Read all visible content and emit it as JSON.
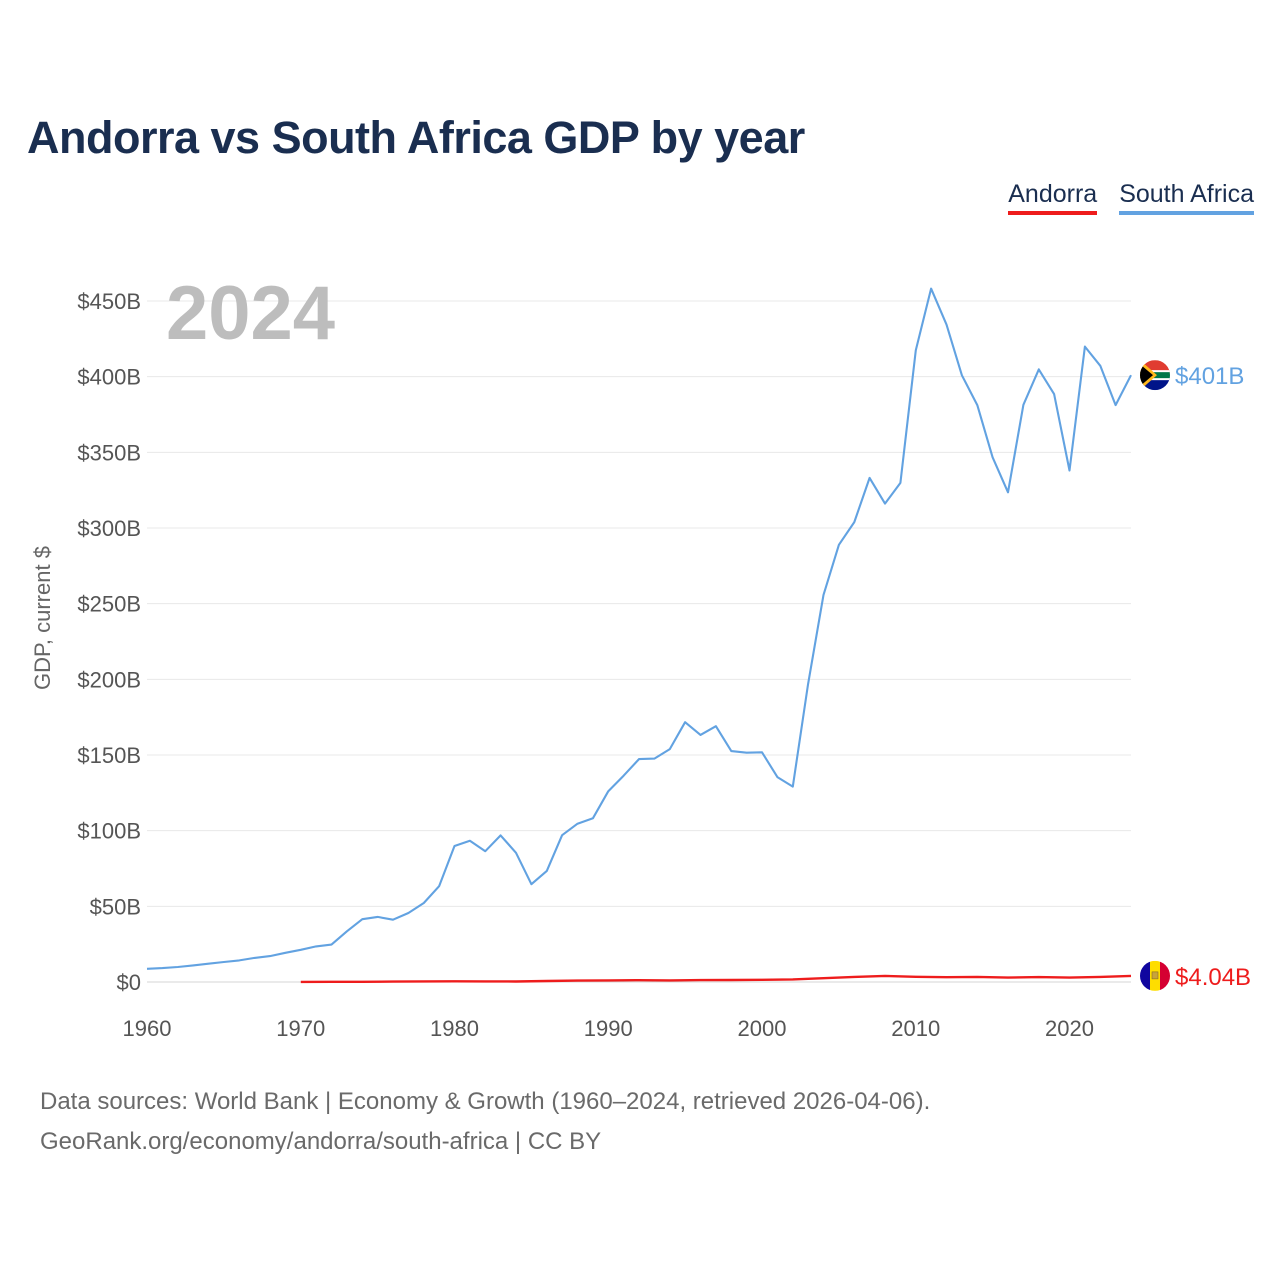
{
  "title": "Andorra vs South Africa GDP by year",
  "legend": {
    "andorra": "Andorra",
    "south_africa": "South Africa"
  },
  "colors": {
    "andorra": "#ee1c1c",
    "south_africa": "#62a2e1",
    "title": "#1a2e50"
  },
  "footer": {
    "line1": "Data sources: World Bank | Economy & Growth (1960–2024, retrieved 2026-04-06).",
    "line2": "GeoRank.org/economy/andorra/south-africa | CC BY"
  },
  "chart_data": {
    "type": "line",
    "title": "Andorra vs South Africa GDP by year",
    "year_label": "2024",
    "ylabel": "GDP, current $",
    "xlabel": "",
    "xlim": [
      1960,
      2024
    ],
    "ylim": [
      0,
      450
    ],
    "x_ticks": [
      1960,
      1970,
      1980,
      1990,
      2000,
      2010,
      2020
    ],
    "x_tick_labels": [
      "1960",
      "1970",
      "1980",
      "1990",
      "2000",
      "2010",
      "2020"
    ],
    "y_ticks": [
      0,
      50,
      100,
      150,
      200,
      250,
      300,
      350,
      400,
      450
    ],
    "y_tick_labels": [
      "$0",
      "$50B",
      "$100B",
      "$150B",
      "$200B",
      "$250B",
      "$300B",
      "$350B",
      "$400B",
      "$450B"
    ],
    "grid": true,
    "legend_position": "top-right",
    "units": "billion USD",
    "series": [
      {
        "name": "South Africa",
        "color": "#62a2e1",
        "end_label": "$401B",
        "x": [
          1960,
          1961,
          1962,
          1963,
          1964,
          1965,
          1966,
          1967,
          1968,
          1969,
          1970,
          1971,
          1972,
          1973,
          1974,
          1975,
          1976,
          1977,
          1978,
          1979,
          1980,
          1981,
          1982,
          1983,
          1984,
          1985,
          1986,
          1987,
          1988,
          1989,
          1990,
          1991,
          1992,
          1993,
          1994,
          1995,
          1996,
          1997,
          1998,
          1999,
          2000,
          2001,
          2002,
          2003,
          2004,
          2005,
          2006,
          2007,
          2008,
          2009,
          2010,
          2011,
          2012,
          2013,
          2014,
          2015,
          2016,
          2017,
          2018,
          2019,
          2020,
          2021,
          2022,
          2023,
          2024
        ],
        "values": [
          8.7,
          9.2,
          9.9,
          11,
          12.1,
          13.2,
          14.3,
          15.9,
          17.1,
          19.3,
          21.3,
          23.5,
          24.7,
          33.5,
          41.5,
          43,
          41.2,
          45.6,
          52.2,
          63.3,
          89.9,
          93.3,
          86.4,
          96.9,
          85.4,
          64.6,
          73.4,
          97,
          104.6,
          108.2,
          126.1,
          136.3,
          147.3,
          147.6,
          153.9,
          171.7,
          163.3,
          169,
          152.6,
          151.5,
          151.8,
          135.4,
          129.1,
          197,
          255.8,
          288.9,
          303.9,
          333.1,
          316.1,
          329.8,
          417.4,
          458.2,
          434.4,
          400.9,
          381.2,
          346.7,
          323.6,
          381.4,
          404.8,
          388.5,
          338,
          419.9,
          407.2,
          381.2,
          401
        ]
      },
      {
        "name": "Andorra",
        "color": "#ee1c1c",
        "end_label": "$4.04B",
        "x": [
          1970,
          1972,
          1974,
          1976,
          1978,
          1980,
          1982,
          1984,
          1986,
          1988,
          1990,
          1992,
          1994,
          1996,
          1998,
          2000,
          2002,
          2004,
          2006,
          2008,
          2010,
          2012,
          2014,
          2016,
          2018,
          2020,
          2022,
          2024
        ],
        "values": [
          0.08,
          0.1,
          0.15,
          0.25,
          0.4,
          0.45,
          0.38,
          0.33,
          0.64,
          0.9,
          1.03,
          1.21,
          1.07,
          1.25,
          1.32,
          1.43,
          1.73,
          2.54,
          3.4,
          4.01,
          3.45,
          3.16,
          3.35,
          2.9,
          3.22,
          2.89,
          3.38,
          4.04
        ]
      }
    ]
  }
}
